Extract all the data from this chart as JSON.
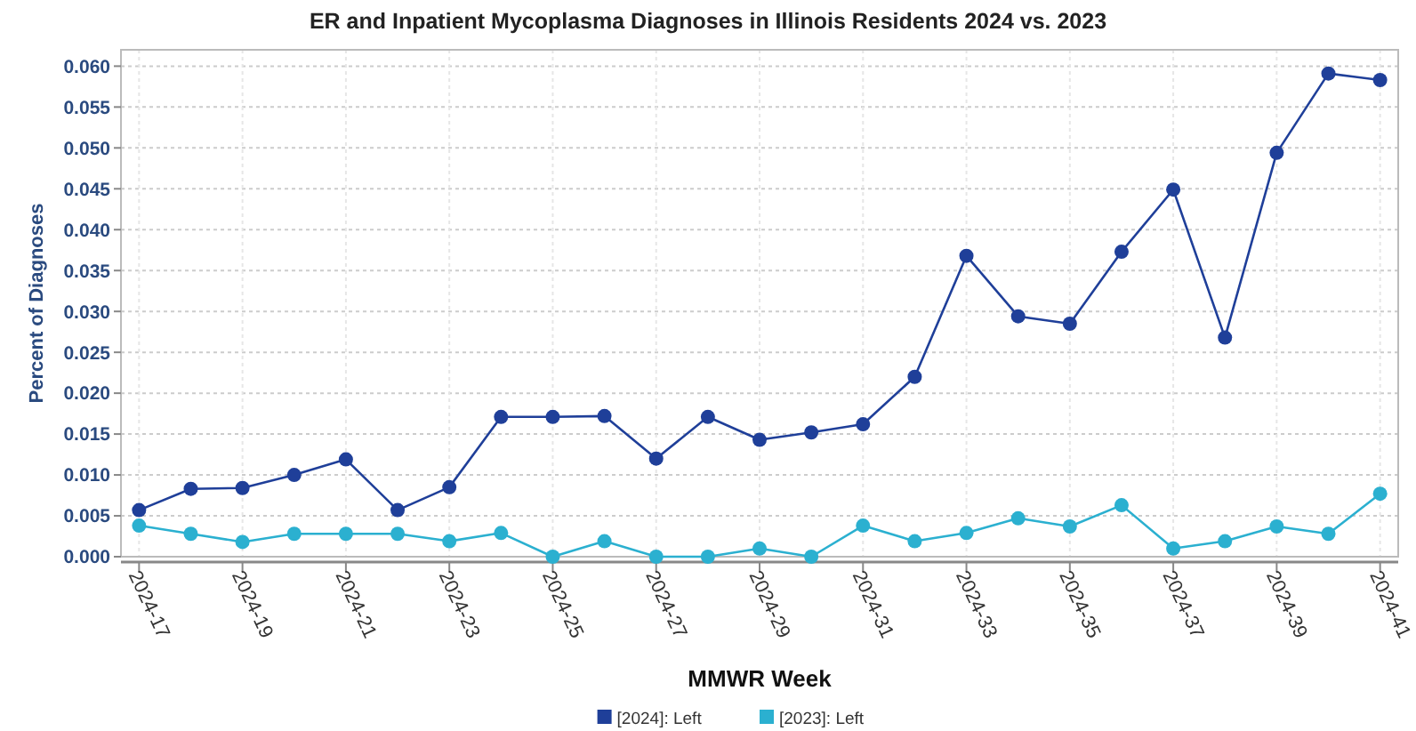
{
  "chart_data": {
    "type": "line",
    "title": "ER and Inpatient Mycoplasma Diagnoses in Illinois Residents 2024 vs. 2023",
    "xlabel": "MMWR Week",
    "ylabel": "Percent of Diagnoses",
    "categories": [
      "2024-17",
      null,
      "2024-19",
      null,
      "2024-21",
      null,
      "2024-23",
      null,
      "2024-25",
      null,
      "2024-27",
      null,
      "2024-29",
      null,
      "2024-31",
      null,
      "2024-33",
      null,
      "2024-35",
      null,
      "2024-37",
      null,
      "2024-39",
      null,
      "2024-41"
    ],
    "series": [
      {
        "name": "[2024]: Left",
        "color": "#1f3f99",
        "values": [
          0.0057,
          0.0083,
          0.0084,
          0.01,
          0.0119,
          0.0057,
          0.0085,
          0.0171,
          0.0171,
          0.0172,
          0.012,
          0.0171,
          0.0143,
          0.0152,
          0.0162,
          0.022,
          0.0368,
          0.0294,
          0.0285,
          0.0373,
          0.0449,
          0.0268,
          0.0494,
          0.0591,
          0.0583
        ]
      },
      {
        "name": "[2023]: Left",
        "color": "#2bb0d0",
        "values": [
          0.0038,
          0.0028,
          0.0018,
          0.0028,
          0.0028,
          0.0028,
          0.0019,
          0.0029,
          0.0,
          0.0019,
          0.0,
          0.0,
          0.001,
          0.0,
          0.0038,
          0.0019,
          0.0029,
          0.0047,
          0.0037,
          0.0063,
          0.001,
          0.0019,
          0.0037,
          0.0028,
          0.0077
        ]
      }
    ],
    "ylim": [
      0,
      0.062
    ],
    "yticks": [
      {
        "value": 0,
        "label": "0.000"
      },
      {
        "value": 0.005,
        "label": "0.005"
      },
      {
        "value": 0.01,
        "label": "0.010"
      },
      {
        "value": 0.015,
        "label": "0.015"
      },
      {
        "value": 0.02,
        "label": "0.020"
      },
      {
        "value": 0.025,
        "label": "0.025"
      },
      {
        "value": 0.03,
        "label": "0.030"
      },
      {
        "value": 0.035,
        "label": "0.035"
      },
      {
        "value": 0.04,
        "label": "0.040"
      },
      {
        "value": 0.045,
        "label": "0.045"
      },
      {
        "value": 0.05,
        "label": "0.050"
      },
      {
        "value": 0.055,
        "label": "0.055"
      },
      {
        "value": 0.06,
        "label": "0.060"
      }
    ],
    "grid": true,
    "legend": "bottom",
    "marker": "circle",
    "line_style": "solid"
  }
}
